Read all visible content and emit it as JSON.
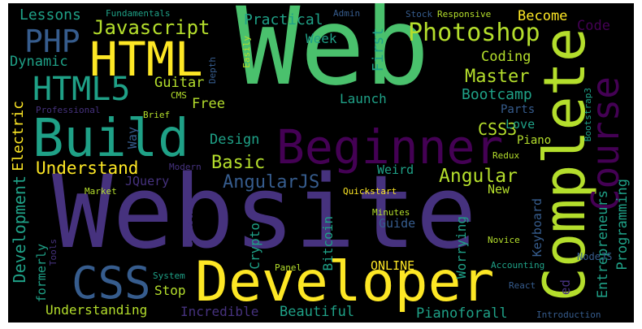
{
  "words": {
    "web": "Web",
    "website": "Website",
    "complete": "Complete",
    "developer": "Developer",
    "build": "Build",
    "course": "Course",
    "beginner": "Beginner",
    "html": "HTML",
    "html5": "HTML5",
    "php": "PHP",
    "css": "CSS",
    "javascript": "Javascript",
    "photoshop": "Photoshop",
    "angularjs": "AngularJS",
    "understand": "Understand",
    "development": "Development",
    "angular": "Angular",
    "basic": "Basic",
    "master": "Master",
    "css3": "CSS3",
    "bootcamp": "Bootcamp",
    "lessons": "Lessons",
    "practical": "Practical",
    "dynamic": "Dynamic",
    "coding": "Coding",
    "become": "Become",
    "code": "Code",
    "guitar": "Guitar",
    "free": "Free",
    "week": "Week",
    "first": "First",
    "launch": "Launch",
    "design": "Design",
    "electric": "Electric",
    "entrepreneurs": "Entrepreneurs",
    "programming": "Programming",
    "pianoforall": "Pianoforall",
    "beautiful": "Beautiful",
    "incredible": "Incredible",
    "understanding": "Understanding",
    "online": "ONLINE",
    "stop": "Stop",
    "worrying": "Worrying",
    "bitcoin": "Bitcoin",
    "crypto": "Crypto",
    "guide": "Guide",
    "weird": "Weird",
    "new": "New",
    "jquery": "JQuery",
    "keyboard": "Keyboard",
    "piano": "Piano",
    "love": "Love",
    "parts": "Parts",
    "redux": "Redux",
    "formerly": "formerly",
    "way": "Way",
    "professional": "Professional",
    "fundamentals": "Fundamentals",
    "admin": "Admin",
    "stock": "Stock",
    "responsive": "Responsive",
    "easily": "Easily",
    "depth": "Depth",
    "cms": "CMS",
    "brief": "Brief",
    "modern": "Modern",
    "market": "Market",
    "investing": "Investing",
    "quickstart": "Quickstart",
    "minutes": "Minutes",
    "novice": "Novice",
    "accounting": "Accounting",
    "nodejs": "NodeJS",
    "react": "React",
    "ed": "ed",
    "introduction": "Introduction",
    "system": "System",
    "panel": "Panel",
    "tools": "Tools",
    "bootstrap3": "Bootstrap3"
  },
  "palette": {
    "background": "#000000",
    "green": "#4ac16d",
    "lime": "#b4de2c",
    "yellow": "#fde725",
    "teal": "#1fa187",
    "blue": "#365c8d",
    "indigo": "#46327e",
    "purple": "#440154"
  }
}
